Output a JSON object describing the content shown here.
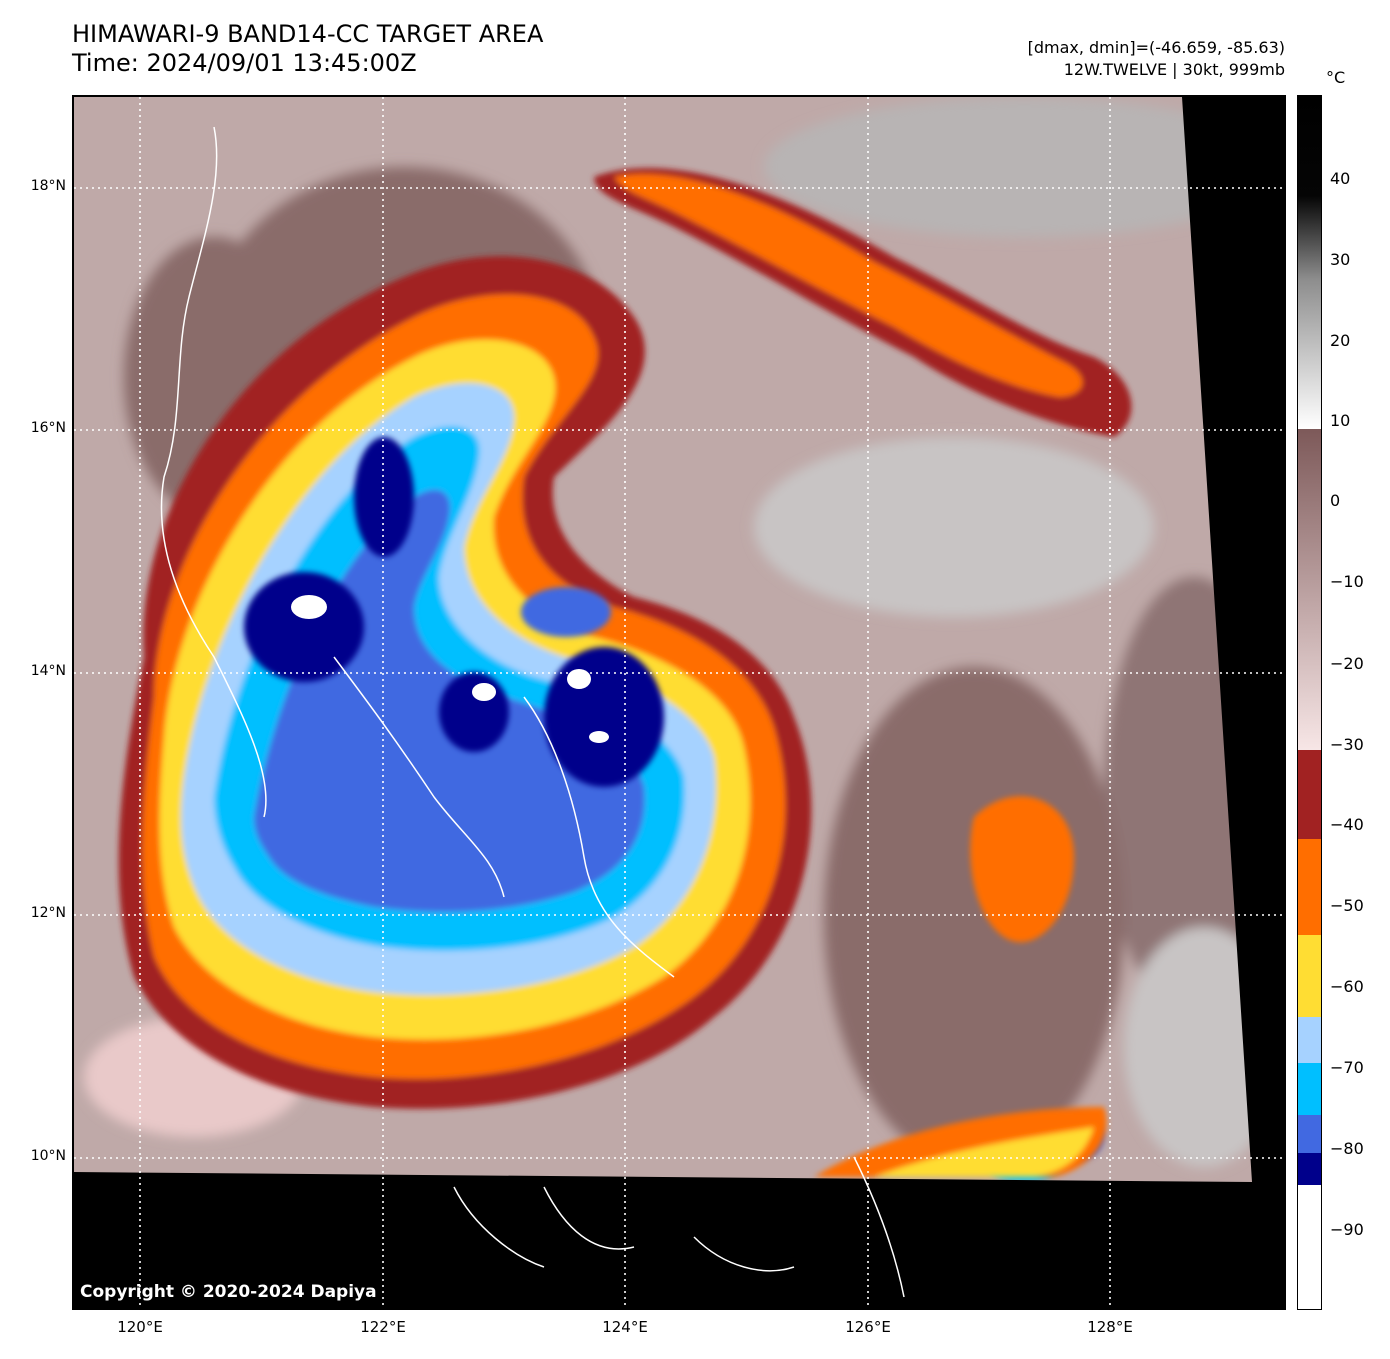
{
  "header": {
    "title_line1": "HIMAWARI-9 BAND14-CC TARGET AREA",
    "title_line2": "Time: 2024/09/01 13:45:00Z",
    "meta_line1": "[dmax, dmin]=(-46.659, -85.63)",
    "meta_line2": "12W.TWELVE | 30kt, 999mb"
  },
  "map": {
    "copyright": "Copyright © 2020-2024 Dapiya",
    "lat_labels": [
      "18°N",
      "16°N",
      "14°N",
      "12°N",
      "10°N"
    ],
    "lon_labels": [
      "120°E",
      "122°E",
      "124°E",
      "126°E",
      "128°E"
    ]
  },
  "colorbar": {
    "unit": "°C",
    "tick_labels": [
      "40",
      "30",
      "20",
      "10",
      "0",
      "−10",
      "−20",
      "−30",
      "−40",
      "−50",
      "−60",
      "−70",
      "−80",
      "−90"
    ],
    "colors": {
      "dark_navy": "#00008b",
      "royal_blue": "#4169e1",
      "deep_sky_blue": "#00bfff",
      "light_sky_blue": "#a6d2ff",
      "gold": "#ffdd33",
      "orange": "#ff6e00",
      "brown_red": "#a12222",
      "pale_pink": "#f3d6d6",
      "grey_brown": "#7f5d5d"
    }
  }
}
